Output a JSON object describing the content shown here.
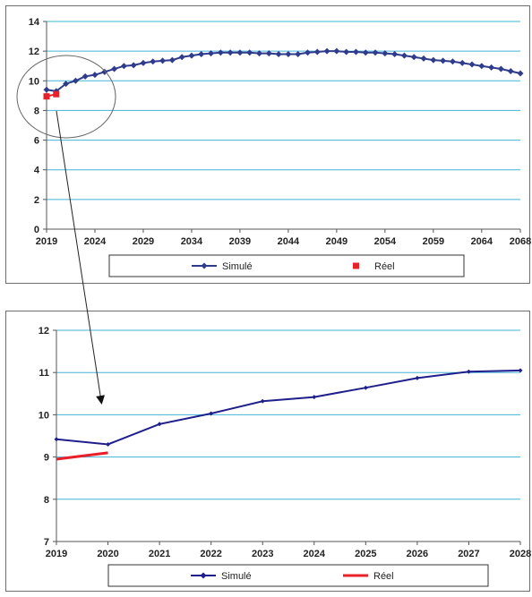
{
  "chart_data": [
    {
      "type": "line",
      "title": "",
      "xlabel": "",
      "ylabel": "",
      "xlim": [
        2019,
        2068
      ],
      "ylim": [
        0,
        14
      ],
      "x_ticks": [
        "2019",
        "2024",
        "2029",
        "2034",
        "2039",
        "2044",
        "2049",
        "2054",
        "2059",
        "2064",
        "2068"
      ],
      "y_ticks": [
        "0",
        "2",
        "4",
        "6",
        "8",
        "10",
        "12",
        "14"
      ],
      "grid": true,
      "legend": "bottom",
      "series": [
        {
          "name": "Simulé",
          "color": "#2f3c8c",
          "marker": "diamond",
          "x": [
            2019,
            2020,
            2021,
            2022,
            2023,
            2024,
            2025,
            2026,
            2027,
            2028,
            2029,
            2030,
            2031,
            2032,
            2033,
            2034,
            2035,
            2036,
            2037,
            2038,
            2039,
            2040,
            2041,
            2042,
            2043,
            2044,
            2045,
            2046,
            2047,
            2048,
            2049,
            2050,
            2051,
            2052,
            2053,
            2054,
            2055,
            2056,
            2057,
            2058,
            2059,
            2060,
            2061,
            2062,
            2063,
            2064,
            2065,
            2066,
            2067,
            2068
          ],
          "y": [
            9.4,
            9.3,
            9.8,
            10.0,
            10.3,
            10.4,
            10.6,
            10.8,
            11.0,
            11.05,
            11.2,
            11.3,
            11.35,
            11.4,
            11.6,
            11.7,
            11.8,
            11.85,
            11.9,
            11.9,
            11.9,
            11.9,
            11.85,
            11.85,
            11.8,
            11.8,
            11.8,
            11.9,
            11.95,
            12.0,
            12.0,
            11.95,
            11.95,
            11.9,
            11.9,
            11.85,
            11.8,
            11.7,
            11.6,
            11.5,
            11.4,
            11.35,
            11.3,
            11.2,
            11.1,
            11.0,
            10.9,
            10.8,
            10.65,
            10.5
          ]
        },
        {
          "name": "Réel",
          "color": "#e8202a",
          "marker": "square",
          "x": [
            2019,
            2020
          ],
          "y": [
            8.95,
            9.1
          ]
        }
      ]
    },
    {
      "type": "line",
      "title": "",
      "xlabel": "",
      "ylabel": "",
      "xlim": [
        2019,
        2028
      ],
      "ylim": [
        7,
        12
      ],
      "x_ticks": [
        "2019",
        "2020",
        "2021",
        "2022",
        "2023",
        "2024",
        "2025",
        "2026",
        "2027",
        "2028"
      ],
      "y_ticks": [
        "7",
        "8",
        "9",
        "10",
        "11",
        "12"
      ],
      "grid": true,
      "legend": "bottom",
      "series": [
        {
          "name": "Simulé",
          "color": "#1f1f8c",
          "marker": "diamond",
          "x": [
            2019,
            2020,
            2021,
            2022,
            2023,
            2024,
            2025,
            2026,
            2027,
            2028
          ],
          "y": [
            9.42,
            9.3,
            9.78,
            10.03,
            10.32,
            10.42,
            10.64,
            10.87,
            11.02,
            11.05
          ]
        },
        {
          "name": "Réel",
          "color": "#e8202a",
          "marker": "none",
          "x": [
            2019,
            2020
          ],
          "y": [
            8.95,
            9.1
          ]
        }
      ]
    }
  ]
}
